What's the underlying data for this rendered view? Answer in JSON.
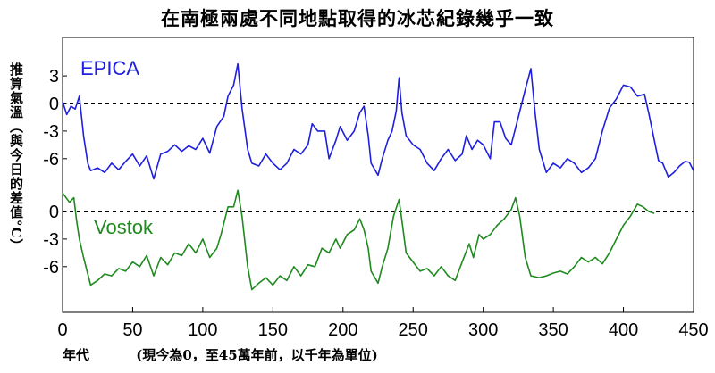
{
  "chart_data": {
    "type": "line",
    "title": "在南極兩處不同地點取得的冰芯紀錄幾乎一致",
    "ylabel": "推算氣溫（與今日的差值°C）",
    "xlabel": "年代",
    "xlabel_note": "(現今為0，至45萬年前，以千年為單位)",
    "xlim": [
      0,
      450
    ],
    "x_ticks": [
      0,
      50,
      100,
      150,
      200,
      250,
      300,
      350,
      400,
      450
    ],
    "grid": false,
    "series": [
      {
        "name": "EPICA",
        "color": "#1f1fe0",
        "y_ticks": [
          3,
          0,
          -3,
          -6
        ],
        "zero_line": true,
        "points": [
          [
            0,
            0.2
          ],
          [
            3,
            -1.2
          ],
          [
            6,
            -0.3
          ],
          [
            9,
            -0.6
          ],
          [
            12,
            0.8
          ],
          [
            15,
            -3.5
          ],
          [
            18,
            -6.5
          ],
          [
            20,
            -7.3
          ],
          [
            25,
            -7
          ],
          [
            30,
            -7.5
          ],
          [
            35,
            -6.5
          ],
          [
            40,
            -7.2
          ],
          [
            45,
            -6.3
          ],
          [
            50,
            -5.5
          ],
          [
            55,
            -6.8
          ],
          [
            60,
            -5.7
          ],
          [
            65,
            -8.2
          ],
          [
            70,
            -5.5
          ],
          [
            75,
            -5.2
          ],
          [
            80,
            -4.5
          ],
          [
            85,
            -5.2
          ],
          [
            90,
            -4.6
          ],
          [
            95,
            -5
          ],
          [
            100,
            -3.8
          ],
          [
            105,
            -5.4
          ],
          [
            110,
            -2.5
          ],
          [
            115,
            -1.4
          ],
          [
            118,
            0.8
          ],
          [
            122,
            2
          ],
          [
            125,
            4.3
          ],
          [
            128,
            -0.5
          ],
          [
            132,
            -5
          ],
          [
            135,
            -6.5
          ],
          [
            140,
            -6.8
          ],
          [
            145,
            -5.5
          ],
          [
            150,
            -6.5
          ],
          [
            155,
            -7.2
          ],
          [
            160,
            -6.5
          ],
          [
            165,
            -5
          ],
          [
            170,
            -5.5
          ],
          [
            175,
            -4.5
          ],
          [
            178,
            -2.2
          ],
          [
            182,
            -3
          ],
          [
            187,
            -3
          ],
          [
            190,
            -6
          ],
          [
            195,
            -4
          ],
          [
            198,
            -2.5
          ],
          [
            203,
            -4
          ],
          [
            208,
            -3
          ],
          [
            212,
            -1
          ],
          [
            215,
            -0.3
          ],
          [
            218,
            -3.5
          ],
          [
            220,
            -6.5
          ],
          [
            225,
            -7.8
          ],
          [
            228,
            -6
          ],
          [
            232,
            -4
          ],
          [
            235,
            -3
          ],
          [
            238,
            -0.8
          ],
          [
            240,
            2.8
          ],
          [
            242,
            -1
          ],
          [
            245,
            -3.5
          ],
          [
            250,
            -4.5
          ],
          [
            255,
            -5
          ],
          [
            260,
            -6.5
          ],
          [
            265,
            -7.3
          ],
          [
            270,
            -6
          ],
          [
            275,
            -5
          ],
          [
            280,
            -6.2
          ],
          [
            285,
            -5.5
          ],
          [
            288,
            -3.5
          ],
          [
            292,
            -5
          ],
          [
            296,
            -4
          ],
          [
            300,
            -4.5
          ],
          [
            305,
            -6
          ],
          [
            308,
            -2
          ],
          [
            312,
            -2
          ],
          [
            316,
            -3.8
          ],
          [
            320,
            -4.5
          ],
          [
            325,
            -1.5
          ],
          [
            330,
            1.5
          ],
          [
            334,
            3.8
          ],
          [
            337,
            -1
          ],
          [
            340,
            -5
          ],
          [
            345,
            -7.5
          ],
          [
            350,
            -6.5
          ],
          [
            355,
            -7
          ],
          [
            360,
            -6
          ],
          [
            365,
            -6.5
          ],
          [
            370,
            -7.5
          ],
          [
            375,
            -7
          ],
          [
            380,
            -6
          ],
          [
            385,
            -3
          ],
          [
            390,
            -0.5
          ],
          [
            395,
            0.5
          ],
          [
            400,
            2
          ],
          [
            405,
            1.8
          ],
          [
            410,
            0.8
          ],
          [
            415,
            1
          ],
          [
            418,
            -1
          ],
          [
            422,
            -4
          ],
          [
            425,
            -6.2
          ],
          [
            428,
            -6.5
          ],
          [
            432,
            -8
          ],
          [
            436,
            -7.5
          ],
          [
            440,
            -6.8
          ],
          [
            444,
            -6.3
          ],
          [
            447,
            -6.4
          ],
          [
            450,
            -7.3
          ]
        ]
      },
      {
        "name": "Vostok",
        "color": "#1f8a1f",
        "y_ticks": [
          0,
          -3,
          -6
        ],
        "zero_line": true,
        "points": [
          [
            0,
            2
          ],
          [
            5,
            1
          ],
          [
            8,
            1.5
          ],
          [
            10,
            -1
          ],
          [
            12,
            -3
          ],
          [
            15,
            -5
          ],
          [
            18,
            -6.8
          ],
          [
            20,
            -8
          ],
          [
            25,
            -7.5
          ],
          [
            30,
            -6.8
          ],
          [
            35,
            -7
          ],
          [
            40,
            -6.2
          ],
          [
            45,
            -6.5
          ],
          [
            50,
            -5.5
          ],
          [
            55,
            -6
          ],
          [
            60,
            -4.8
          ],
          [
            65,
            -7
          ],
          [
            70,
            -5
          ],
          [
            75,
            -5.8
          ],
          [
            80,
            -4.5
          ],
          [
            85,
            -4.8
          ],
          [
            90,
            -3.5
          ],
          [
            95,
            -4.5
          ],
          [
            100,
            -3
          ],
          [
            105,
            -5
          ],
          [
            110,
            -4
          ],
          [
            113,
            -2.5
          ],
          [
            118,
            0.5
          ],
          [
            122,
            0.5
          ],
          [
            125,
            2.3
          ],
          [
            128,
            -0.5
          ],
          [
            132,
            -6
          ],
          [
            135,
            -8.5
          ],
          [
            140,
            -7.8
          ],
          [
            145,
            -7.2
          ],
          [
            150,
            -8
          ],
          [
            155,
            -7
          ],
          [
            160,
            -7.5
          ],
          [
            165,
            -6
          ],
          [
            170,
            -7
          ],
          [
            175,
            -5.8
          ],
          [
            180,
            -6
          ],
          [
            185,
            -4
          ],
          [
            190,
            -4.5
          ],
          [
            195,
            -3
          ],
          [
            198,
            -4
          ],
          [
            203,
            -2.5
          ],
          [
            208,
            -2
          ],
          [
            212,
            -0.8
          ],
          [
            215,
            -2
          ],
          [
            218,
            -4
          ],
          [
            220,
            -6.5
          ],
          [
            225,
            -7.8
          ],
          [
            228,
            -6
          ],
          [
            232,
            -4
          ],
          [
            236,
            -0.5
          ],
          [
            240,
            1.3
          ],
          [
            242,
            -1
          ],
          [
            245,
            -4.5
          ],
          [
            250,
            -5.5
          ],
          [
            255,
            -6.5
          ],
          [
            260,
            -6.2
          ],
          [
            265,
            -7
          ],
          [
            270,
            -6
          ],
          [
            275,
            -7
          ],
          [
            280,
            -7.5
          ],
          [
            285,
            -5.5
          ],
          [
            290,
            -3.5
          ],
          [
            293,
            -5
          ],
          [
            297,
            -2.5
          ],
          [
            300,
            -3
          ],
          [
            305,
            -2.5
          ],
          [
            310,
            -1.5
          ],
          [
            315,
            -0.8
          ],
          [
            320,
            0.2
          ],
          [
            323,
            1.5
          ],
          [
            326,
            -0.5
          ],
          [
            330,
            -5
          ],
          [
            334,
            -7
          ],
          [
            340,
            -7.2
          ],
          [
            345,
            -7
          ],
          [
            350,
            -6.7
          ],
          [
            355,
            -6.5
          ],
          [
            360,
            -6.8
          ],
          [
            365,
            -6
          ],
          [
            370,
            -5
          ],
          [
            375,
            -5.5
          ],
          [
            380,
            -5
          ],
          [
            385,
            -5.7
          ],
          [
            390,
            -4.5
          ],
          [
            395,
            -3
          ],
          [
            400,
            -1.5
          ],
          [
            405,
            -0.5
          ],
          [
            410,
            0.8
          ],
          [
            414,
            0.5
          ],
          [
            418,
            0
          ],
          [
            422,
            -0.2
          ]
        ]
      }
    ]
  },
  "labels": {
    "title": "在南極兩處不同地點取得的冰芯紀錄幾乎一致",
    "ylabel": "推算氣溫（與今日的差值°C）",
    "xlabel": "年代",
    "xlabel_note": "(現今為0，至45萬年前，以千年為單位)"
  }
}
